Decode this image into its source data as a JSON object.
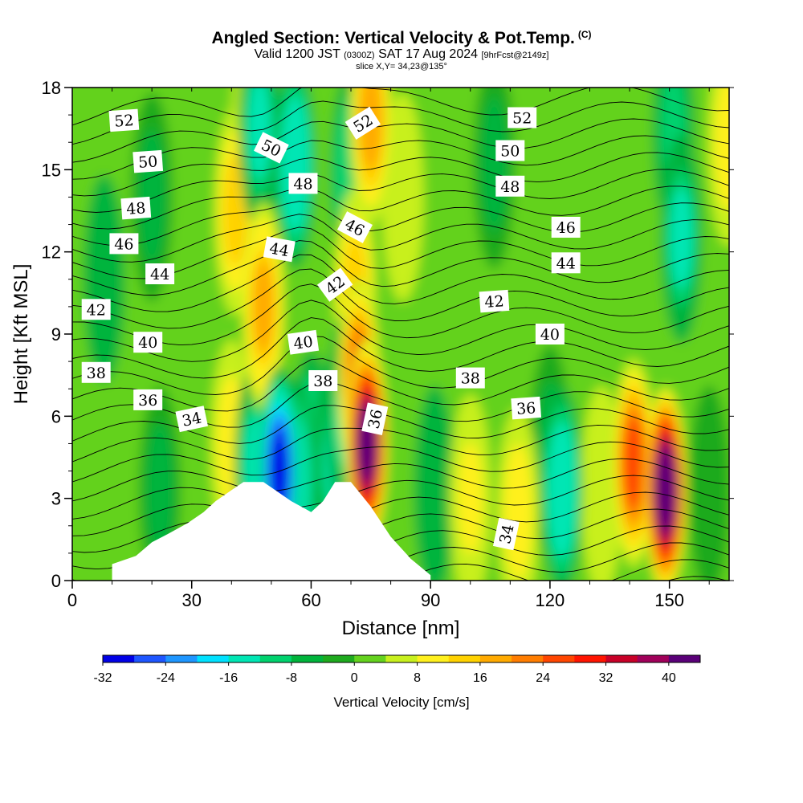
{
  "header": {
    "title": "Angled Section: Vertical Velocity & Pot.Temp.",
    "title_suffix": "(C)",
    "valid_prefix": "Valid 1200 JST",
    "valid_zulu": "(0300Z)",
    "valid_date": "SAT 17 Aug 2024",
    "forecast": "[9hrFcst@2149z]",
    "slice": "slice X,Y= 34,23@135°"
  },
  "chart_data": {
    "type": "heatmap",
    "xlabel": "Distance [nm]",
    "ylabel": "Height [Kft MSL]",
    "xlim": [
      0,
      165
    ],
    "ylim": [
      0,
      18
    ],
    "xticks": [
      "0",
      "30",
      "60",
      "90",
      "120",
      "150"
    ],
    "yticks": [
      "0",
      "3",
      "6",
      "9",
      "12",
      "15",
      "18"
    ],
    "colorbar": {
      "label": "Vertical Velocity [cm/s]",
      "ticks": [
        "-32",
        "-24",
        "-16",
        "-8",
        "0",
        "8",
        "16",
        "24",
        "32",
        "40"
      ],
      "range": [
        -32,
        44
      ],
      "colors": [
        "#0000e6",
        "#1e56ff",
        "#1e96ff",
        "#00e1ff",
        "#00e6b4",
        "#00d26e",
        "#00b43c",
        "#1eaa1e",
        "#64d21e",
        "#c8f01e",
        "#fff01e",
        "#ffd200",
        "#ffaa00",
        "#ff7d00",
        "#ff4600",
        "#ff1400",
        "#c80028",
        "#a0005a",
        "#5a0078"
      ]
    },
    "vertical_velocity_cells": [
      {
        "x": 52,
        "y": 4.0,
        "value": -30
      },
      {
        "x": 56,
        "y": 3.6,
        "value": -16
      },
      {
        "x": 46,
        "y": 4.2,
        "value": -14
      },
      {
        "x": 60,
        "y": 4.6,
        "value": -12
      },
      {
        "x": 66,
        "y": 4.5,
        "value": -14
      },
      {
        "x": 69,
        "y": 6.0,
        "value": -14
      },
      {
        "x": 47,
        "y": 16.5,
        "value": -14
      },
      {
        "x": 56,
        "y": 15.2,
        "value": -16
      },
      {
        "x": 70,
        "y": 14.8,
        "value": -12
      },
      {
        "x": 123,
        "y": 3.3,
        "value": -16
      },
      {
        "x": 120,
        "y": 4.8,
        "value": -6
      },
      {
        "x": 153,
        "y": 12.5,
        "value": -14
      },
      {
        "x": 151,
        "y": 16.5,
        "value": -10
      },
      {
        "x": 74,
        "y": 5.0,
        "value": 40
      },
      {
        "x": 72,
        "y": 7.2,
        "value": 24
      },
      {
        "x": 75,
        "y": 16.8,
        "value": 16
      },
      {
        "x": 71,
        "y": 10.5,
        "value": 12
      },
      {
        "x": 48,
        "y": 10.0,
        "value": 18
      },
      {
        "x": 41,
        "y": 13.5,
        "value": 12
      },
      {
        "x": 45,
        "y": 16.0,
        "value": 8
      },
      {
        "x": 149,
        "y": 3.3,
        "value": 44
      },
      {
        "x": 141,
        "y": 4.3,
        "value": 24
      },
      {
        "x": 165,
        "y": 16.0,
        "value": 8
      },
      {
        "x": 100,
        "y": 3.0,
        "value": 10
      },
      {
        "x": 112,
        "y": 2.5,
        "value": 8
      },
      {
        "x": 91,
        "y": 3.3,
        "value": -8
      },
      {
        "x": 83,
        "y": 14.0,
        "value": 4
      },
      {
        "x": 8,
        "y": 11.0,
        "value": -8
      },
      {
        "x": 20,
        "y": 14.0,
        "value": -6
      },
      {
        "x": 22,
        "y": 3.3,
        "value": -6
      },
      {
        "x": 40,
        "y": 5.0,
        "value": 8
      },
      {
        "x": 106,
        "y": 15.2,
        "value": -6
      },
      {
        "x": 133,
        "y": 3.3,
        "value": 6
      },
      {
        "x": 160,
        "y": 3.3,
        "value": -4
      }
    ],
    "pot_temp_contours": [
      {
        "label": "34",
        "label_at": [
          30,
          5.9
        ],
        "label_angle": -12,
        "label2_at": [
          109,
          1.7
        ],
        "label2_angle": -78
      },
      {
        "label": "36",
        "label_at": [
          19,
          6.6
        ],
        "label_angle": 0,
        "label2_at": [
          76,
          5.9
        ],
        "label2_angle": -78,
        "label3_at": [
          114,
          6.3
        ],
        "label3_angle": -4
      },
      {
        "label": "38",
        "label_at": [
          6,
          7.6
        ],
        "label_angle": 0,
        "label2_at": [
          63,
          7.3
        ],
        "label2_angle": 0,
        "label3_at": [
          100,
          7.4
        ],
        "label3_angle": 0
      },
      {
        "label": "40",
        "label_at": [
          19,
          8.7
        ],
        "label_angle": 0,
        "label2_at": [
          58,
          8.7
        ],
        "label2_angle": -8,
        "label3_at": [
          120,
          9.0
        ],
        "label3_angle": 0
      },
      {
        "label": "42",
        "label_at": [
          6,
          9.9
        ],
        "label_angle": 0,
        "label2_at": [
          66,
          10.8
        ],
        "label2_angle": -36,
        "label3_at": [
          106,
          10.2
        ],
        "label3_angle": -4
      },
      {
        "label": "44",
        "label_at": [
          22,
          11.2
        ],
        "label_angle": 0,
        "label2_at": [
          52,
          12.1
        ],
        "label2_angle": 10,
        "label3_at": [
          124,
          11.6
        ],
        "label3_angle": 0
      },
      {
        "label": "46",
        "label_at": [
          13,
          12.3
        ],
        "label_angle": 0,
        "label2_at": [
          71,
          12.9
        ],
        "label2_angle": 28,
        "label3_at": [
          124,
          12.9
        ],
        "label3_angle": 0
      },
      {
        "label": "48",
        "label_at": [
          16,
          13.6
        ],
        "label_angle": -4,
        "label2_at": [
          58,
          14.5
        ],
        "label2_angle": 0,
        "label3_at": [
          110,
          14.4
        ],
        "label3_angle": 0
      },
      {
        "label": "50",
        "label_at": [
          19,
          15.3
        ],
        "label_angle": -4,
        "label2_at": [
          50,
          15.8
        ],
        "label2_angle": 26,
        "label3_at": [
          110,
          15.7
        ],
        "label3_angle": 0
      },
      {
        "label": "52",
        "label_at": [
          13,
          16.8
        ],
        "label_angle": -4,
        "label2_at": [
          73,
          16.7
        ],
        "label2_angle": -32,
        "label3_at": [
          113,
          16.9
        ],
        "label3_angle": 0
      }
    ],
    "terrain_profile": [
      [
        10,
        0.6
      ],
      [
        16,
        0.9
      ],
      [
        20,
        1.4
      ],
      [
        24,
        1.7
      ],
      [
        29,
        2.1
      ],
      [
        33,
        2.5
      ],
      [
        36,
        2.9
      ],
      [
        40,
        3.3
      ],
      [
        43,
        3.6
      ],
      [
        48,
        3.6
      ],
      [
        51,
        3.3
      ],
      [
        55,
        2.9
      ],
      [
        60,
        2.5
      ],
      [
        63,
        2.9
      ],
      [
        66,
        3.6
      ],
      [
        70,
        3.6
      ],
      [
        75,
        2.7
      ],
      [
        80,
        1.6
      ],
      [
        85,
        0.8
      ],
      [
        90,
        0.2
      ]
    ]
  }
}
